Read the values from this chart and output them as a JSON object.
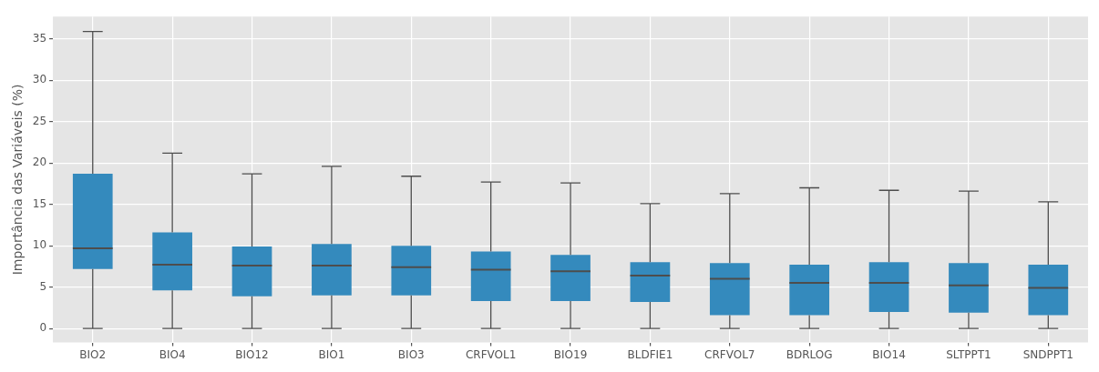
{
  "chart_data": {
    "type": "box",
    "ylabel": "Importância das Variáveis (%)",
    "categories": [
      "BIO2",
      "BIO4",
      "BIO12",
      "BIO1",
      "BIO3",
      "CRFVOL1",
      "BIO19",
      "BLDFIE1",
      "CRFVOL7",
      "BDRLOG",
      "BIO14",
      "SLTPPT1",
      "SNDPPT1"
    ],
    "series": [
      {
        "color": "#348abd",
        "boxes": [
          {
            "low": 0,
            "q1": 7.2,
            "median": 9.7,
            "q3": 18.7,
            "high": 35.9
          },
          {
            "low": 0,
            "q1": 4.6,
            "median": 7.7,
            "q3": 11.6,
            "high": 21.2
          },
          {
            "low": 0,
            "q1": 3.9,
            "median": 7.6,
            "q3": 9.9,
            "high": 18.7
          },
          {
            "low": 0,
            "q1": 4.0,
            "median": 7.6,
            "q3": 10.2,
            "high": 19.6
          },
          {
            "low": 0,
            "q1": 4.0,
            "median": 7.4,
            "q3": 10.0,
            "high": 18.4
          },
          {
            "low": 0,
            "q1": 3.3,
            "median": 7.1,
            "q3": 9.3,
            "high": 17.7
          },
          {
            "low": 0,
            "q1": 3.3,
            "median": 6.9,
            "q3": 8.9,
            "high": 17.6
          },
          {
            "low": 0,
            "q1": 3.2,
            "median": 6.4,
            "q3": 8.0,
            "high": 15.1
          },
          {
            "low": 0,
            "q1": 1.6,
            "median": 6.0,
            "q3": 7.9,
            "high": 16.3
          },
          {
            "low": 0,
            "q1": 1.6,
            "median": 5.5,
            "q3": 7.7,
            "high": 17.0
          },
          {
            "low": 0,
            "q1": 2.0,
            "median": 5.5,
            "q3": 8.0,
            "high": 16.7
          },
          {
            "low": 0,
            "q1": 1.9,
            "median": 5.2,
            "q3": 7.9,
            "high": 16.6
          },
          {
            "low": 0,
            "q1": 1.6,
            "median": 4.9,
            "q3": 7.7,
            "high": 15.3
          }
        ]
      }
    ],
    "ylim": [
      -1.7,
      37.7
    ],
    "yticks": [
      0,
      5,
      10,
      15,
      20,
      25,
      30,
      35
    ],
    "grid": true
  }
}
